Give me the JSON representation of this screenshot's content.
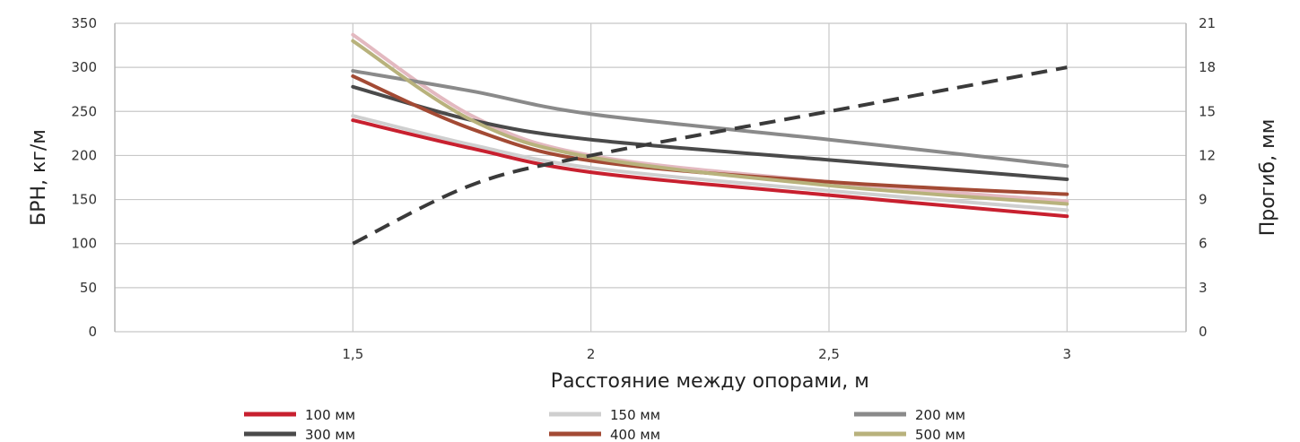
{
  "chart_data": {
    "type": "line",
    "title": "",
    "xlabel": "Расстояние между опорами, м",
    "ylabel": "БРН, кг/м",
    "y2label": "Прогиб, мм",
    "x": [
      1.5,
      1.75,
      2,
      2.5,
      3
    ],
    "x_tick_values": [
      1.5,
      2,
      2.5,
      3
    ],
    "x_tick_labels": [
      "1,5",
      "2",
      "2,5",
      "3"
    ],
    "xlim": [
      1.0,
      3.25
    ],
    "ylim": [
      0,
      350
    ],
    "y_ticks": [
      0,
      50,
      100,
      150,
      200,
      250,
      300,
      350
    ],
    "y2lim": [
      0,
      21
    ],
    "y2_ticks": [
      0,
      3,
      6,
      9,
      12,
      15,
      18,
      21
    ],
    "grid": true,
    "legend_position": "bottom",
    "series": [
      {
        "name": "100 мм",
        "axis": "left",
        "color": "#c8202f",
        "values": [
          240,
          208,
          181,
          155,
          131
        ]
      },
      {
        "name": "150 мм",
        "axis": "left",
        "color": "#cfcfcf",
        "values": [
          245,
          212,
          186,
          160,
          138
        ]
      },
      {
        "name": "200 мм",
        "axis": "left",
        "color": "#8a8a8a",
        "values": [
          296,
          273,
          247,
          218,
          188
        ]
      },
      {
        "name": "300 мм",
        "axis": "left",
        "color": "#4a4a4a",
        "values": [
          278,
          240,
          218,
          195,
          173
        ]
      },
      {
        "name": "400 мм",
        "axis": "left",
        "color": "#a34a34",
        "values": [
          290,
          230,
          194,
          170,
          156
        ]
      },
      {
        "name": "500 мм",
        "axis": "left",
        "color": "#b8b27c",
        "values": [
          330,
          240,
          198,
          166,
          145
        ]
      },
      {
        "name": "",
        "axis": "right",
        "style": "dashed",
        "color": "#3a3a3a",
        "values": [
          6,
          10,
          12,
          15,
          18
        ]
      }
    ],
    "extra_series": [
      {
        "name": "",
        "axis": "left",
        "color": "#e3b9c0",
        "values": [
          337,
          245,
          200,
          170,
          148
        ]
      }
    ]
  }
}
